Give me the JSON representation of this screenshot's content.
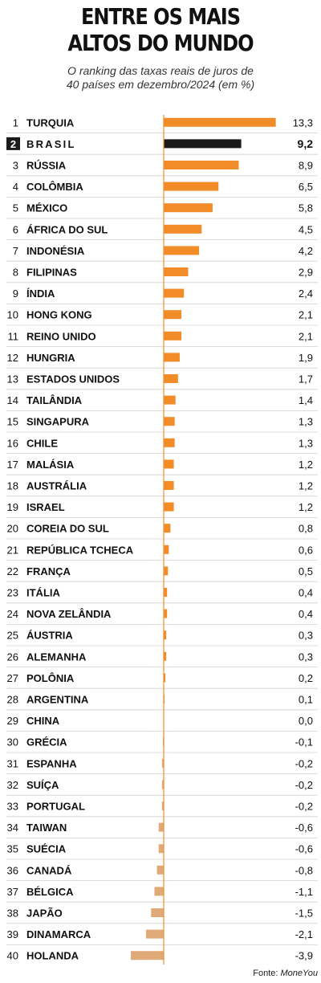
{
  "title_lines": [
    "ENTRE OS MAIS",
    "ALTOS DO MUNDO"
  ],
  "subtitle_lines": [
    "O ranking das taxas reais de juros de",
    "40 países em dezembro/2024 (em %)"
  ],
  "source_label": "Fonte:",
  "source_name": "MoneYou",
  "colors": {
    "positive": "#f28c28",
    "negative": "#e0aa78",
    "highlight": "#1a1a1a",
    "axis": "#f28c28",
    "separator": "#d0d0d0"
  },
  "chart_data": {
    "type": "bar",
    "orientation": "horizontal",
    "highlight_country": "BRASIL",
    "xlim": [
      -3.9,
      13.3
    ],
    "rows": [
      {
        "rank": "1",
        "country": "TURQUIA",
        "value": 13.3,
        "label": "13,3"
      },
      {
        "rank": "2",
        "country": "BRASIL",
        "value": 9.2,
        "label": "9,2"
      },
      {
        "rank": "3",
        "country": "RÚSSIA",
        "value": 8.9,
        "label": "8,9"
      },
      {
        "rank": "4",
        "country": "COLÔMBIA",
        "value": 6.5,
        "label": "6,5"
      },
      {
        "rank": "5",
        "country": "MÉXICO",
        "value": 5.8,
        "label": "5,8"
      },
      {
        "rank": "6",
        "country": "ÁFRICA DO SUL",
        "value": 4.5,
        "label": "4,5"
      },
      {
        "rank": "7",
        "country": "INDONÉSIA",
        "value": 4.2,
        "label": "4,2"
      },
      {
        "rank": "8",
        "country": "FILIPINAS",
        "value": 2.9,
        "label": "2,9"
      },
      {
        "rank": "9",
        "country": "ÍNDIA",
        "value": 2.4,
        "label": "2,4"
      },
      {
        "rank": "10",
        "country": "HONG KONG",
        "value": 2.1,
        "label": "2,1"
      },
      {
        "rank": "11",
        "country": "REINO UNIDO",
        "value": 2.1,
        "label": "2,1"
      },
      {
        "rank": "12",
        "country": "HUNGRIA",
        "value": 1.9,
        "label": "1,9"
      },
      {
        "rank": "13",
        "country": "ESTADOS UNIDOS",
        "value": 1.7,
        "label": "1,7"
      },
      {
        "rank": "14",
        "country": "TAILÂNDIA",
        "value": 1.4,
        "label": "1,4"
      },
      {
        "rank": "15",
        "country": "SINGAPURA",
        "value": 1.3,
        "label": "1,3"
      },
      {
        "rank": "16",
        "country": "CHILE",
        "value": 1.3,
        "label": "1,3"
      },
      {
        "rank": "17",
        "country": "MALÁSIA",
        "value": 1.2,
        "label": "1,2"
      },
      {
        "rank": "18",
        "country": "AUSTRÁLIA",
        "value": 1.2,
        "label": "1,2"
      },
      {
        "rank": "19",
        "country": "ISRAEL",
        "value": 1.2,
        "label": "1,2"
      },
      {
        "rank": "20",
        "country": "COREIA DO SUL",
        "value": 0.8,
        "label": "0,8"
      },
      {
        "rank": "21",
        "country": "REPÚBLICA TCHECA",
        "value": 0.6,
        "label": "0,6"
      },
      {
        "rank": "22",
        "country": "FRANÇA",
        "value": 0.5,
        "label": "0,5"
      },
      {
        "rank": "23",
        "country": "ITÁLIA",
        "value": 0.4,
        "label": "0,4"
      },
      {
        "rank": "24",
        "country": "NOVA ZELÂNDIA",
        "value": 0.4,
        "label": "0,4"
      },
      {
        "rank": "25",
        "country": "ÁUSTRIA",
        "value": 0.3,
        "label": "0,3"
      },
      {
        "rank": "26",
        "country": "ALEMANHA",
        "value": 0.3,
        "label": "0,3"
      },
      {
        "rank": "27",
        "country": "POLÔNIA",
        "value": 0.2,
        "label": "0,2"
      },
      {
        "rank": "28",
        "country": "ARGENTINA",
        "value": 0.1,
        "label": "0,1"
      },
      {
        "rank": "29",
        "country": "CHINA",
        "value": 0.0,
        "label": "0,0"
      },
      {
        "rank": "30",
        "country": "GRÉCIA",
        "value": -0.1,
        "label": "-0,1"
      },
      {
        "rank": "31",
        "country": "ESPANHA",
        "value": -0.2,
        "label": "-0,2"
      },
      {
        "rank": "32",
        "country": "SUÍÇA",
        "value": -0.2,
        "label": "-0,2"
      },
      {
        "rank": "33",
        "country": "PORTUGAL",
        "value": -0.2,
        "label": "-0,2"
      },
      {
        "rank": "34",
        "country": "TAIWAN",
        "value": -0.6,
        "label": "-0,6"
      },
      {
        "rank": "35",
        "country": "SUÉCIA",
        "value": -0.6,
        "label": "-0,6"
      },
      {
        "rank": "36",
        "country": "CANADÁ",
        "value": -0.8,
        "label": "-0,8"
      },
      {
        "rank": "37",
        "country": "BÉLGICA",
        "value": -1.1,
        "label": "-1,1"
      },
      {
        "rank": "38",
        "country": "JAPÃO",
        "value": -1.5,
        "label": "-1,5"
      },
      {
        "rank": "39",
        "country": "DINAMARCA",
        "value": -2.1,
        "label": "-2,1"
      },
      {
        "rank": "40",
        "country": "HOLANDA",
        "value": -3.9,
        "label": "-3,9"
      }
    ]
  }
}
